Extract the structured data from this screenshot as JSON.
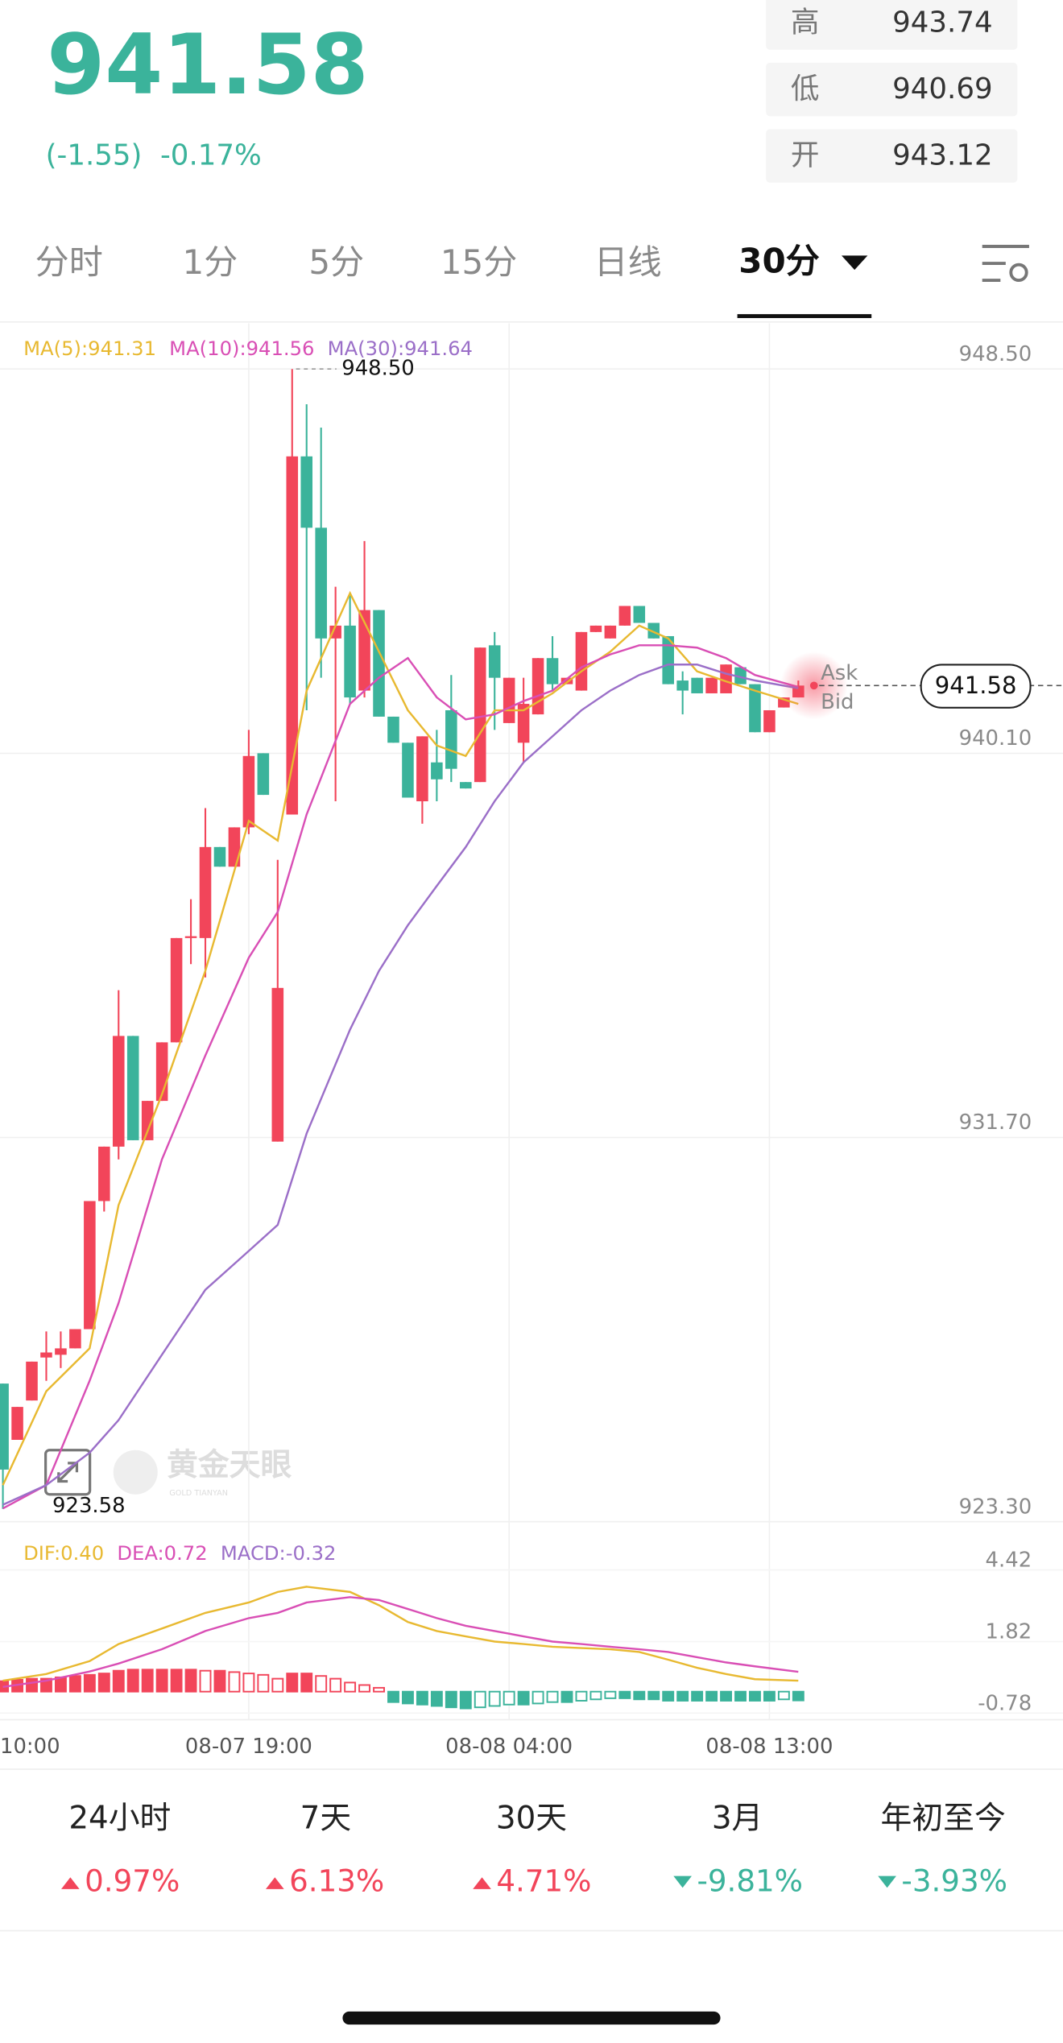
{
  "header": {
    "price": "941.58",
    "change": "(-1.55)",
    "change_pct": "-0.17%",
    "stats": [
      {
        "label": "高",
        "value": "943.74"
      },
      {
        "label": "低",
        "value": "940.69"
      },
      {
        "label": "开",
        "value": "943.12"
      }
    ]
  },
  "tabs": [
    "分时",
    "1分",
    "5分",
    "15分",
    "日线",
    "30分"
  ],
  "watermark": {
    "name": "黄金天眼",
    "sub": "GOLD TIANYAN"
  },
  "chart_data": [
    {
      "type": "candlestick",
      "up_color": "#f2455a",
      "down_color": "#3bb39b",
      "grid": true,
      "x": [
        0,
        1,
        2,
        3,
        4,
        5,
        6,
        7,
        8,
        9,
        10,
        11,
        12,
        13,
        14,
        15,
        16,
        17,
        18,
        19,
        20,
        21,
        22,
        23,
        24,
        25,
        26,
        27,
        28,
        29,
        30,
        31,
        32,
        33,
        34,
        35,
        36,
        37,
        38,
        39,
        40,
        41,
        42,
        43,
        44,
        45,
        46,
        47,
        48,
        49,
        50,
        51,
        52,
        53,
        54,
        55
      ],
      "open": [
        926.32,
        925.09,
        925.95,
        926.89,
        926.95,
        927.09,
        927.51,
        930.31,
        931.5,
        933.92,
        931.64,
        932.5,
        933.78,
        936.06,
        936.06,
        938.05,
        937.62,
        938.48,
        940.1,
        931.61,
        938.76,
        946.59,
        945.03,
        942.61,
        942.89,
        941.47,
        943.23,
        940.9,
        940.33,
        939.05,
        939.9,
        941.04,
        939.47,
        939.47,
        942.46,
        940.76,
        940.33,
        940.95,
        942.18,
        941.61,
        941.47,
        942.75,
        942.61,
        942.89,
        943.32,
        942.95,
        942.66,
        941.69,
        941.75,
        941.41,
        941.41,
        941.98,
        941.61,
        940.56,
        941.1,
        941.32
      ],
      "high": [
        926.32,
        925.81,
        926.8,
        927.46,
        927.46,
        927.51,
        930.31,
        931.5,
        934.92,
        933.92,
        932.5,
        933.78,
        936.06,
        936.91,
        938.9,
        938.05,
        938.48,
        940.61,
        940.1,
        937.77,
        948.5,
        947.73,
        947.22,
        943.74,
        943.6,
        944.74,
        943.23,
        940.9,
        940.33,
        940.47,
        940.61,
        941.81,
        939.47,
        942.41,
        942.75,
        941.75,
        941.75,
        942.18,
        942.66,
        941.75,
        942.75,
        942.89,
        942.89,
        943.32,
        943.32,
        942.95,
        942.66,
        941.89,
        941.75,
        941.75,
        942.04,
        941.98,
        941.61,
        941.04,
        941.32,
        941.69
      ],
      "low": [
        923.58,
        925.09,
        925.95,
        926.38,
        926.66,
        927.09,
        927.51,
        930.08,
        931.22,
        931.64,
        931.64,
        932.5,
        933.78,
        935.49,
        935.2,
        937.62,
        937.62,
        938.33,
        939.19,
        931.61,
        938.76,
        941.04,
        941.75,
        939.05,
        941.18,
        941.32,
        940.9,
        940.33,
        939.13,
        938.56,
        939.05,
        939.47,
        939.33,
        939.47,
        940.61,
        940.76,
        939.9,
        940.95,
        941.47,
        941.61,
        941.47,
        942.75,
        942.61,
        942.89,
        942.95,
        942.61,
        941.61,
        940.95,
        941.41,
        941.41,
        941.41,
        941.61,
        940.56,
        940.56,
        941.1,
        941.32
      ],
      "close": [
        924.44,
        925.81,
        926.8,
        927.0,
        927.09,
        927.51,
        930.31,
        931.5,
        933.92,
        931.64,
        932.5,
        933.78,
        936.06,
        936.1,
        938.05,
        937.62,
        938.48,
        940.04,
        939.19,
        934.97,
        946.59,
        945.03,
        942.61,
        942.89,
        941.32,
        943.23,
        940.9,
        940.33,
        939.13,
        940.47,
        939.53,
        939.76,
        939.33,
        942.41,
        941.75,
        941.75,
        941.18,
        942.18,
        941.61,
        941.75,
        942.75,
        942.89,
        942.89,
        943.32,
        942.95,
        942.61,
        941.61,
        941.47,
        941.41,
        941.75,
        942.04,
        941.61,
        940.56,
        941.04,
        941.32,
        941.58
      ],
      "series": [
        {
          "name": "MA(5):941.31",
          "color": "#e8b931",
          "x": [
            0,
            3,
            6,
            8,
            11,
            14,
            17,
            19,
            21,
            24,
            26,
            28,
            30,
            32,
            34,
            36,
            38,
            40,
            42,
            44,
            46,
            48,
            50,
            52,
            55
          ],
          "values": [
            924.1,
            926.15,
            927.09,
            930.22,
            932.64,
            935.34,
            938.62,
            938.19,
            941.47,
            943.6,
            942.32,
            941.04,
            940.27,
            940.04,
            941.04,
            941.04,
            941.41,
            941.89,
            942.32,
            942.89,
            942.61,
            941.89,
            941.67,
            941.47,
            941.18
          ]
        },
        {
          "name": "MA(10):941.56",
          "color": "#d94fb5",
          "x": [
            0,
            3,
            6,
            8,
            11,
            14,
            17,
            19,
            21,
            24,
            26,
            28,
            30,
            32,
            34,
            36,
            38,
            40,
            42,
            44,
            46,
            48,
            50,
            52,
            55
          ],
          "values": [
            923.59,
            924.1,
            926.38,
            928.08,
            931.22,
            933.49,
            935.63,
            936.63,
            938.76,
            941.18,
            941.75,
            942.18,
            941.32,
            940.84,
            940.95,
            941.24,
            941.47,
            941.98,
            942.26,
            942.46,
            942.46,
            942.41,
            942.18,
            941.81,
            941.55
          ]
        },
        {
          "name": "MA(30):941.64",
          "color": "#9b6fc8",
          "x": [
            0,
            3,
            6,
            8,
            11,
            14,
            17,
            19,
            21,
            24,
            26,
            28,
            30,
            32,
            34,
            36,
            38,
            40,
            42,
            44,
            46,
            48,
            50,
            52,
            55
          ],
          "values": [
            923.67,
            924.1,
            924.81,
            925.52,
            926.95,
            928.37,
            929.22,
            929.79,
            931.79,
            934.06,
            935.34,
            936.34,
            937.2,
            938.05,
            939.05,
            939.9,
            940.47,
            941.04,
            941.47,
            941.81,
            942.04,
            942.04,
            941.84,
            941.69,
            941.52
          ]
        }
      ],
      "xlim": [
        -0.2,
        73.3
      ],
      "xticks": [
        {
          "value": -1,
          "label": "10:00"
        },
        {
          "value": 17,
          "label": "08-07 19:00"
        },
        {
          "value": 35,
          "label": "08-08 04:00"
        },
        {
          "value": 53,
          "label": "08-08 13:00"
        }
      ],
      "ylim": [
        923.3,
        949.5
      ],
      "yticks": [
        {
          "value": 948.5,
          "label": "948.50"
        },
        {
          "value": 940.1,
          "label": "940.10"
        },
        {
          "value": 931.7,
          "label": "931.70"
        },
        {
          "value": 923.3,
          "label": "923.30"
        }
      ],
      "max_label": "948.50",
      "min_label": "923.58",
      "last_price_label": "941.58",
      "ask": "Ask",
      "bid": "Bid"
    },
    {
      "type": "macd",
      "up_color": "#f2455a",
      "down_color": "#3bb39b",
      "x": [
        0,
        1,
        2,
        3,
        4,
        5,
        6,
        7,
        8,
        9,
        10,
        11,
        12,
        13,
        14,
        15,
        16,
        17,
        18,
        19,
        20,
        21,
        22,
        23,
        24,
        25,
        26,
        27,
        28,
        29,
        30,
        31,
        32,
        33,
        34,
        35,
        36,
        37,
        38,
        39,
        40,
        41,
        42,
        43,
        44,
        45,
        46,
        47,
        48,
        49,
        50,
        51,
        52,
        53,
        54,
        55
      ],
      "histogram": {
        "name": "MACD:-0.32",
        "color": "#9b6fc8",
        "values": [
          0.38,
          0.43,
          0.47,
          0.47,
          0.52,
          0.57,
          0.61,
          0.66,
          0.76,
          0.8,
          0.8,
          0.8,
          0.8,
          0.8,
          0.76,
          0.76,
          0.71,
          0.66,
          0.61,
          0.47,
          0.66,
          0.66,
          0.57,
          0.47,
          0.33,
          0.24,
          0.14,
          -0.38,
          -0.43,
          -0.47,
          -0.52,
          -0.57,
          -0.61,
          -0.57,
          -0.52,
          -0.47,
          -0.47,
          -0.43,
          -0.38,
          -0.38,
          -0.33,
          -0.28,
          -0.24,
          -0.24,
          -0.28,
          -0.28,
          -0.33,
          -0.33,
          -0.33,
          -0.33,
          -0.33,
          -0.33,
          -0.33,
          -0.33,
          -0.28,
          -0.32
        ]
      },
      "series": [
        {
          "name": "DIF:0.40",
          "color": "#e8b931",
          "x": [
            0,
            3,
            6,
            8,
            11,
            14,
            17,
            19,
            21,
            24,
            26,
            28,
            30,
            32,
            34,
            36,
            38,
            40,
            42,
            44,
            46,
            48,
            50,
            52,
            55
          ],
          "values": [
            0.4,
            0.64,
            1.11,
            1.73,
            2.29,
            2.86,
            3.24,
            3.62,
            3.81,
            3.62,
            3.14,
            2.53,
            2.2,
            2.01,
            1.82,
            1.73,
            1.63,
            1.58,
            1.54,
            1.44,
            1.16,
            0.87,
            0.64,
            0.45,
            0.4
          ]
        },
        {
          "name": "DEA:0.72",
          "color": "#d94fb5",
          "x": [
            0,
            3,
            6,
            8,
            11,
            14,
            17,
            19,
            21,
            24,
            26,
            28,
            30,
            32,
            34,
            36,
            38,
            40,
            42,
            44,
            46,
            48,
            50,
            52,
            55
          ],
          "values": [
            0.17,
            0.4,
            0.73,
            1.02,
            1.54,
            2.2,
            2.67,
            2.86,
            3.24,
            3.43,
            3.33,
            3.0,
            2.67,
            2.39,
            2.2,
            2.01,
            1.82,
            1.73,
            1.63,
            1.54,
            1.44,
            1.25,
            1.06,
            0.92,
            0.72
          ]
        }
      ],
      "xlim": [
        -0.2,
        73.3
      ],
      "ylim": [
        -1.02,
        5.84
      ],
      "yticks": [
        4.42,
        1.82,
        -0.78
      ]
    }
  ],
  "performance": [
    {
      "label": "24小时",
      "value": "0.97%"
    },
    {
      "label": "7天",
      "value": "6.13%"
    },
    {
      "label": "30天",
      "value": "4.71%"
    },
    {
      "label": "3月",
      "value": "-9.81%"
    },
    {
      "label": "年初至今",
      "value": "-3.93%"
    }
  ]
}
